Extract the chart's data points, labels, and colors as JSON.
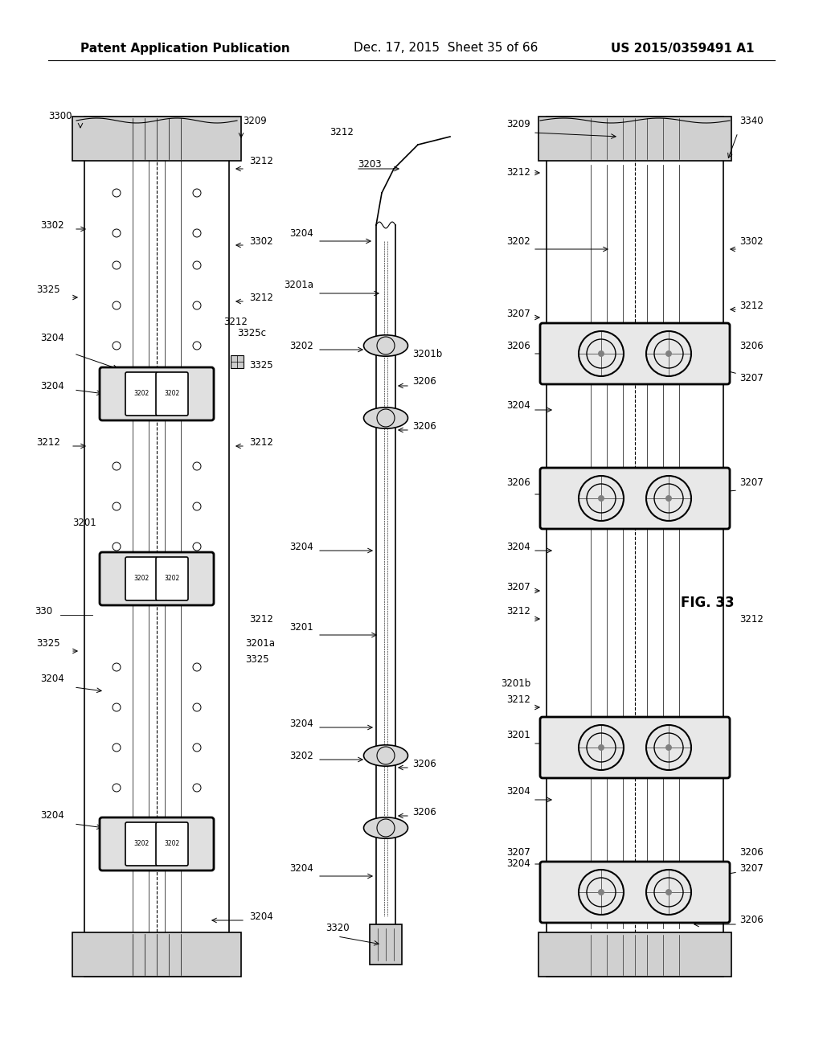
{
  "bg_color": "#ffffff",
  "header_text": "Patent Application Publication",
  "header_date": "Dec. 17, 2015  Sheet 35 of 66",
  "header_patent": "US 2015/0359491 A1",
  "fig_label": "FIG. 33",
  "title_fontsize": 11,
  "label_fontsize": 8.5
}
